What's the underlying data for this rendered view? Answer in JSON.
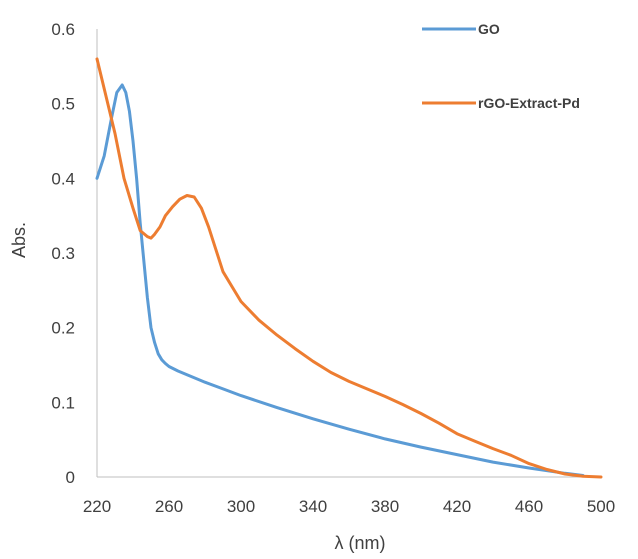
{
  "chart_data": {
    "type": "line",
    "xlabel": "λ (nm)",
    "ylabel": "Abs.",
    "xlim": [
      220,
      500
    ],
    "ylim": [
      0,
      0.6
    ],
    "x_ticks": [
      "220",
      "260",
      "300",
      "340",
      "380",
      "420",
      "460",
      "500"
    ],
    "y_ticks": [
      "0",
      "0.1",
      "0.2",
      "0.3",
      "0.4",
      "0.5",
      "0.6"
    ],
    "grid": false,
    "legend_position": "top-right",
    "series": [
      {
        "name": "GO",
        "color": "#5b9bd5",
        "x": [
          220,
          224,
          228,
          231,
          234,
          236,
          238,
          240,
          242,
          244,
          246,
          248,
          250,
          252,
          254,
          256,
          258,
          260,
          265,
          270,
          280,
          290,
          300,
          320,
          340,
          360,
          380,
          400,
          420,
          440,
          460,
          480,
          490
        ],
        "y": [
          0.4,
          0.43,
          0.48,
          0.515,
          0.525,
          0.515,
          0.49,
          0.45,
          0.4,
          0.34,
          0.29,
          0.24,
          0.2,
          0.18,
          0.165,
          0.157,
          0.152,
          0.148,
          0.142,
          0.137,
          0.127,
          0.118,
          0.109,
          0.093,
          0.078,
          0.064,
          0.051,
          0.04,
          0.03,
          0.02,
          0.012,
          0.005,
          0.002
        ]
      },
      {
        "name": "rGO-Extract-Pd",
        "color": "#ed7d31",
        "x": [
          220,
          225,
          230,
          235,
          240,
          244,
          248,
          250,
          252,
          255,
          258,
          262,
          266,
          270,
          274,
          278,
          282,
          286,
          290,
          295,
          300,
          310,
          320,
          330,
          340,
          350,
          360,
          370,
          380,
          390,
          400,
          410,
          420,
          430,
          440,
          450,
          460,
          470,
          480,
          490,
          500
        ],
        "y": [
          0.56,
          0.51,
          0.46,
          0.4,
          0.36,
          0.33,
          0.322,
          0.32,
          0.325,
          0.335,
          0.35,
          0.362,
          0.372,
          0.377,
          0.375,
          0.36,
          0.335,
          0.305,
          0.275,
          0.255,
          0.235,
          0.21,
          0.19,
          0.172,
          0.155,
          0.14,
          0.128,
          0.118,
          0.108,
          0.097,
          0.085,
          0.072,
          0.058,
          0.048,
          0.038,
          0.029,
          0.018,
          0.01,
          0.004,
          0.001,
          0.0
        ]
      }
    ]
  }
}
